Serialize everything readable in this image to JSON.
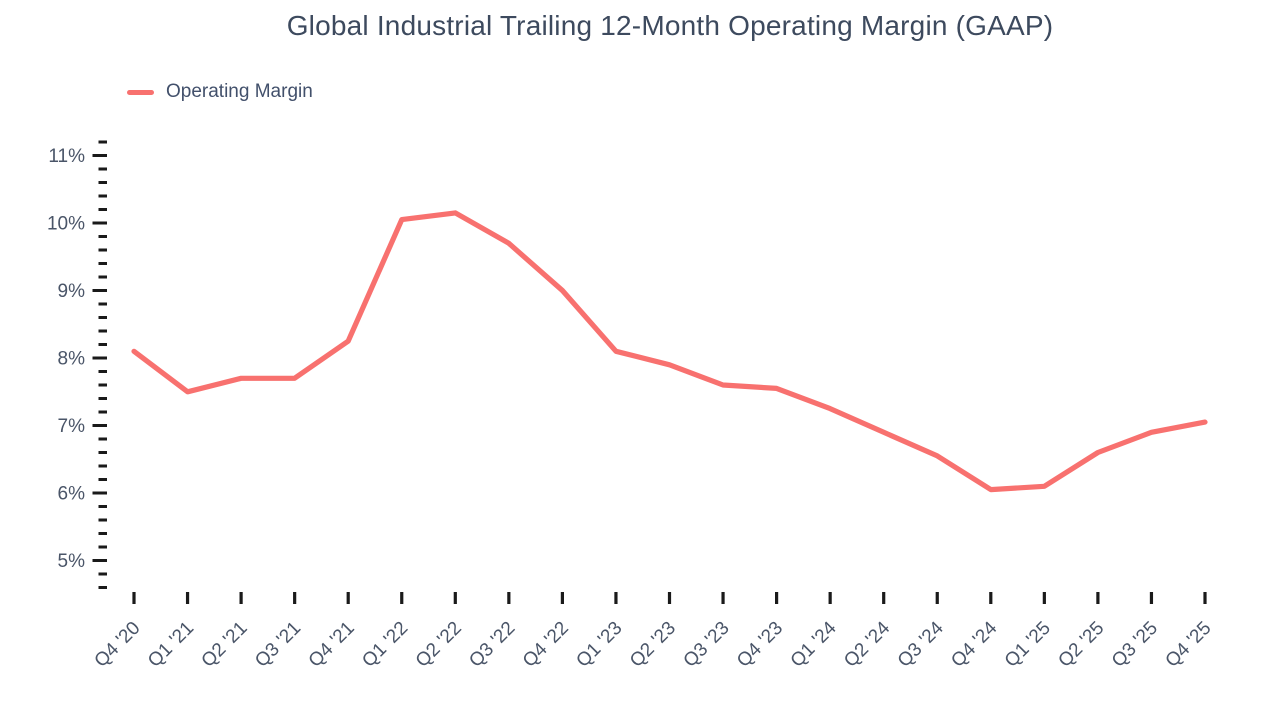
{
  "header": {
    "title": "Global Industrial Trailing 12-Month Operating Margin (GAAP)"
  },
  "legend": {
    "label": "Operating Margin",
    "swatch_color": "#f8716f"
  },
  "chart_data": {
    "type": "line",
    "title": "Global Industrial Trailing 12-Month Operating Margin (GAAP)",
    "categories": [
      "Q4 '20",
      "Q1 '21",
      "Q2 '21",
      "Q3 '21",
      "Q4 '21",
      "Q1 '22",
      "Q2 '22",
      "Q3 '22",
      "Q4 '22",
      "Q1 '23",
      "Q2 '23",
      "Q3 '23",
      "Q4 '23",
      "Q1 '24",
      "Q2 '24",
      "Q3 '24",
      "Q4 '24",
      "Q1 '25",
      "Q2 '25",
      "Q3 '25",
      "Q4 '25"
    ],
    "series": [
      {
        "name": "Operating Margin",
        "color": "#f8716f",
        "values": [
          8.1,
          7.5,
          7.7,
          7.7,
          8.25,
          10.05,
          10.15,
          9.7,
          9.0,
          8.1,
          7.9,
          7.6,
          7.55,
          7.25,
          6.9,
          6.55,
          6.05,
          6.1,
          6.6,
          6.9,
          7.05
        ]
      }
    ],
    "unit": "%",
    "xlabel": "",
    "ylabel": "",
    "ylim": [
      4.6,
      11.2
    ],
    "y_major_ticks": [
      {
        "value": 11,
        "label": "11%"
      },
      {
        "value": 10,
        "label": "10%"
      },
      {
        "value": 9,
        "label": "9%"
      },
      {
        "value": 8,
        "label": "8%"
      },
      {
        "value": 7,
        "label": "7%"
      },
      {
        "value": 6,
        "label": "6%"
      },
      {
        "value": 5,
        "label": "5%"
      }
    ],
    "y_minor_step": 0.2,
    "grid": false,
    "legend_position": "top-left",
    "colors": {
      "tick": "#1a1a1a",
      "axis_label": "#4a5568",
      "title": "#3d4a5e",
      "background": "#ffffff"
    }
  }
}
